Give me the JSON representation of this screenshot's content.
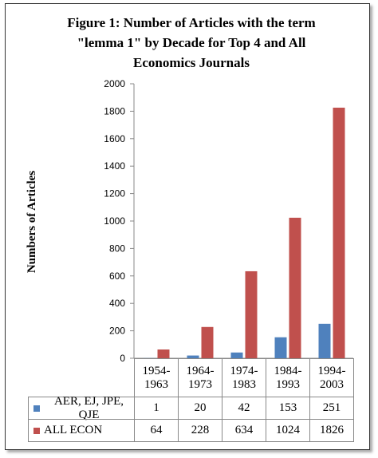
{
  "chart_data": {
    "type": "bar",
    "title_lines": [
      "Figure 1: Number of Articles with the term",
      "\"lemma 1\" by Decade for Top 4 and All",
      "Economics Journals"
    ],
    "y_label": "Numbers of Articles",
    "categories": [
      "1954-1963",
      "1964-1973",
      "1974-1983",
      "1984-1993",
      "1994-2003"
    ],
    "series": [
      {
        "name": "AER, EJ, JPE, QJE",
        "color": "#4f81bd",
        "values": [
          1,
          20,
          42,
          153,
          251
        ]
      },
      {
        "name": "ALL ECON",
        "color": "#c0504d",
        "values": [
          64,
          228,
          634,
          1024,
          1826
        ]
      }
    ],
    "ylim": [
      0,
      2000
    ],
    "yticks": [
      0,
      200,
      400,
      600,
      800,
      1000,
      1200,
      1400,
      1600,
      1800,
      2000
    ],
    "grid": false
  }
}
